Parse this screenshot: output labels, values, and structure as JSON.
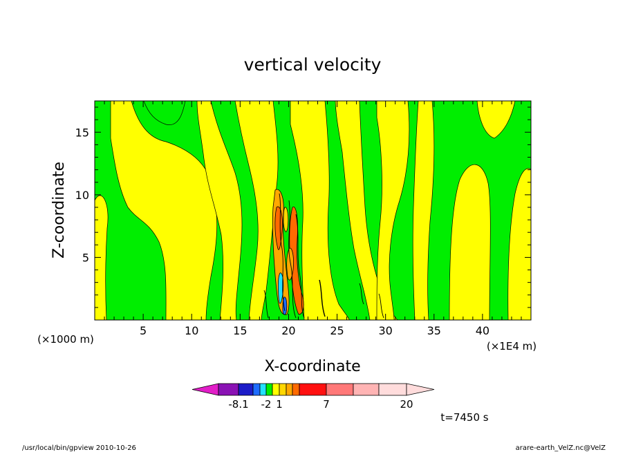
{
  "chart_data": {
    "type": "contour",
    "title": "vertical velocity",
    "xlabel": "X-coordinate",
    "ylabel": "Z-coordinate",
    "x_unit_left": "(×1000 m)",
    "x_unit_right": "(×1E4 m)",
    "xlim": [
      0,
      45
    ],
    "ylim": [
      0,
      17.5
    ],
    "x_ticks": [
      "5",
      "10",
      "15",
      "20",
      "25",
      "30",
      "35",
      "40"
    ],
    "y_ticks": [
      "5",
      "10",
      "15"
    ],
    "background_color": "#00ee00",
    "colorbar": {
      "labels": [
        {
          "text": "-8.1",
          "bin": 1
        },
        {
          "text": "-2",
          "bin": 4
        },
        {
          "text": "1",
          "bin": 6
        },
        {
          "text": "7",
          "bin": 10
        },
        {
          "text": "20",
          "bin": 14
        }
      ],
      "colors": [
        "#e21ec8",
        "#8a12b4",
        "#1c1cc8",
        "#1e6cff",
        "#23e1ff",
        "#00ee00",
        "#ffff00",
        "#ffd700",
        "#ffa800",
        "#ff6a00",
        "#ff1010",
        "#ff7878",
        "#ffb4b4",
        "#ffdcdc"
      ]
    },
    "time_label": "t=7450 s"
  },
  "footer": {
    "left": "/usr/local/bin/gpview  2010-10-26",
    "right": "arare-earth_VelZ.nc@VelZ"
  }
}
